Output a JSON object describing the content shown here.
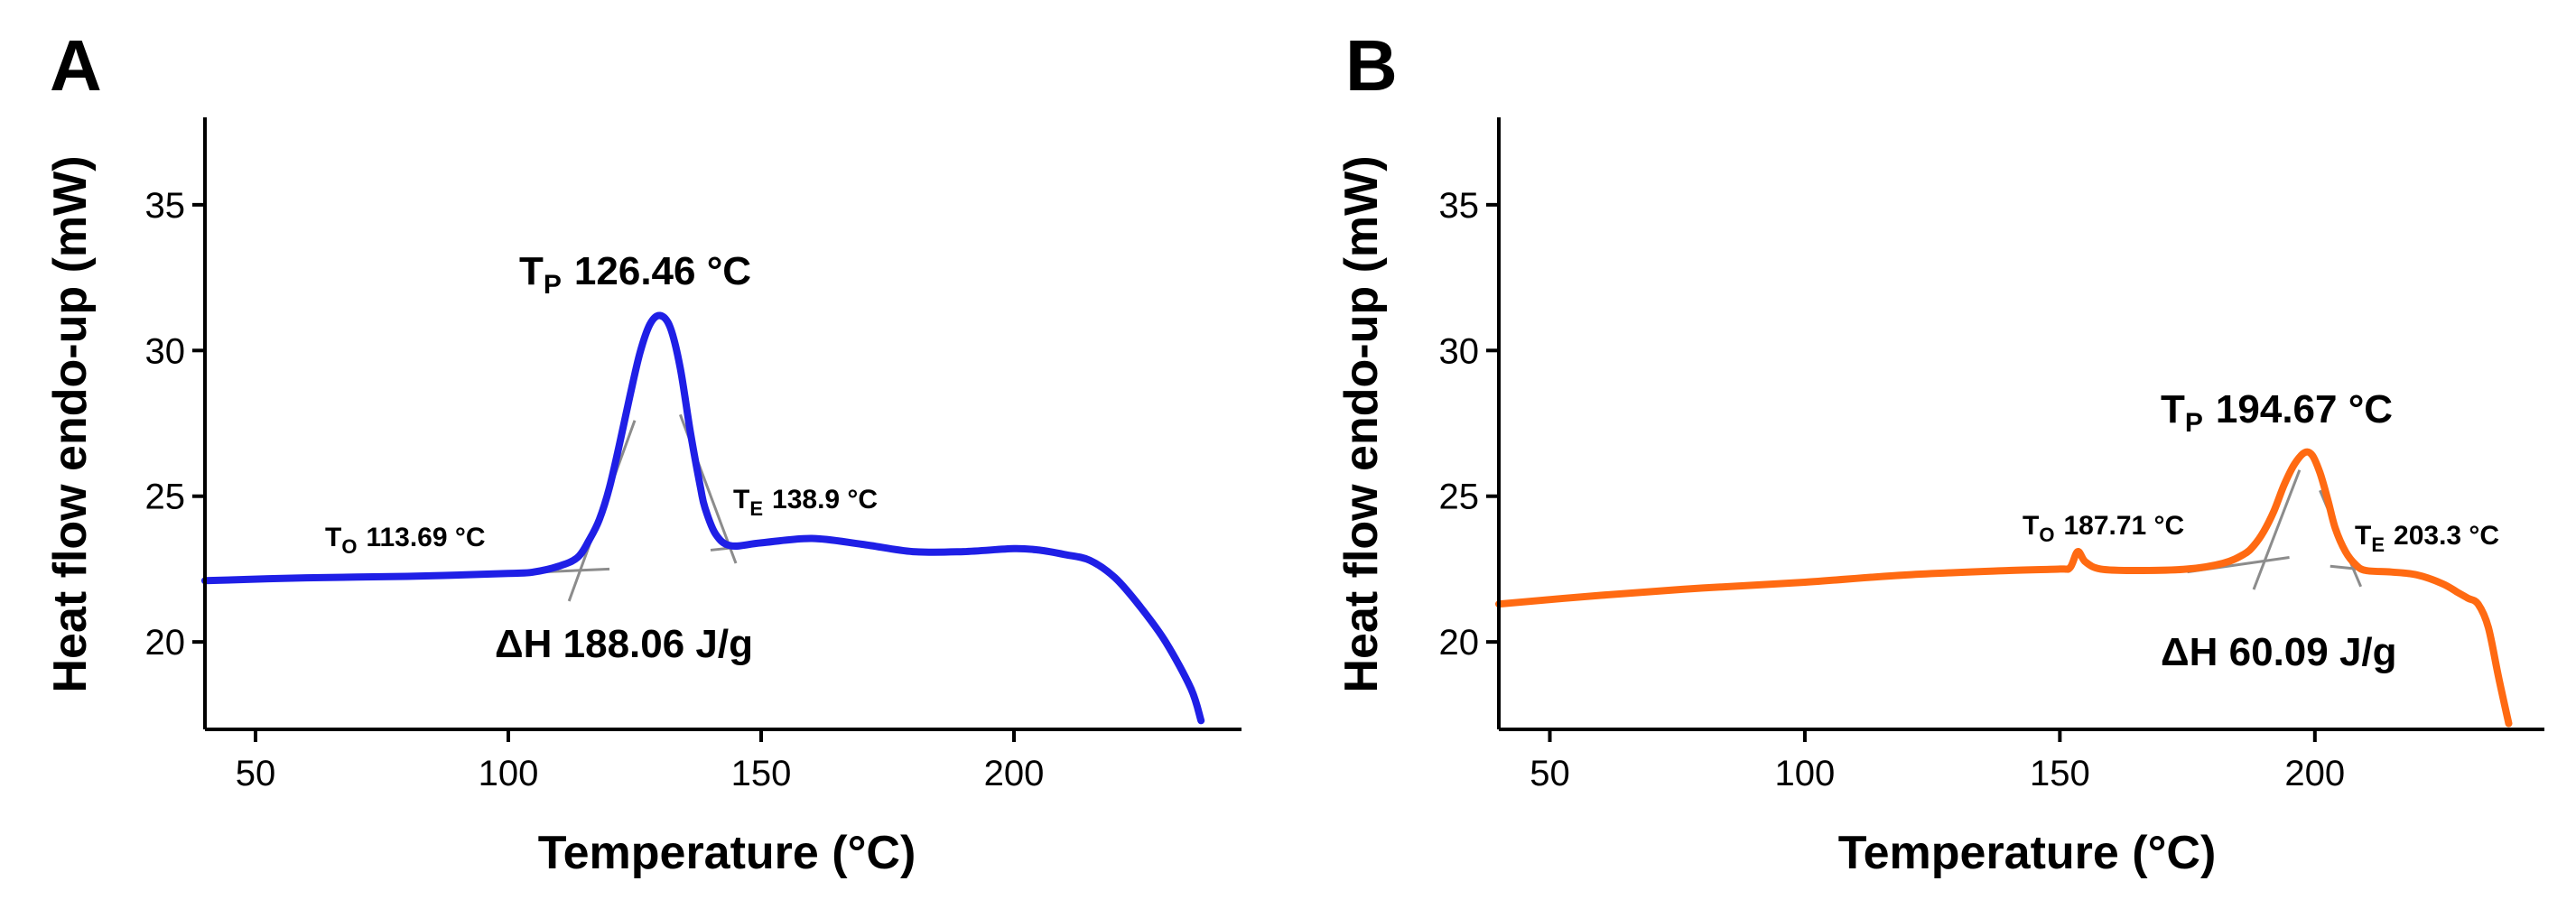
{
  "chart_data": [
    {
      "type": "line",
      "panel": "A",
      "xlabel": "Temperature (°C)",
      "ylabel": "Heat flow endo-up (mW)",
      "xlim": [
        40,
        245
      ],
      "ylim": [
        17,
        38
      ],
      "xticks": [
        50,
        100,
        150,
        200
      ],
      "yticks": [
        20,
        25,
        30,
        35
      ],
      "color": "#1f1fe6",
      "series": [
        {
          "name": "A",
          "x": [
            40,
            60,
            80,
            100,
            105,
            110,
            113.7,
            116,
            118,
            120,
            122,
            124,
            126,
            128,
            130,
            132,
            134,
            136,
            138,
            138.9,
            141,
            144,
            150,
            160,
            170,
            180,
            190,
            200,
            205,
            210,
            215,
            220,
            225,
            230,
            235,
            237
          ],
          "y": [
            22.1,
            22.2,
            22.25,
            22.35,
            22.4,
            22.6,
            22.9,
            23.5,
            24.2,
            25.3,
            26.8,
            28.4,
            29.9,
            30.9,
            31.2,
            30.8,
            29.4,
            27.2,
            25.3,
            24.6,
            23.7,
            23.3,
            23.4,
            23.55,
            23.35,
            23.1,
            23.1,
            23.2,
            23.15,
            23.0,
            22.8,
            22.2,
            21.2,
            20.0,
            18.4,
            17.3
          ]
        }
      ],
      "annotations": {
        "peak": {
          "label": "T",
          "sub": "P",
          "value": "126.46 °C"
        },
        "onset": {
          "label": "T",
          "sub": "O",
          "value": "113.69 °C"
        },
        "endset": {
          "label": "T",
          "sub": "E",
          "value": "138.9 °C"
        },
        "enthalpy": "ΔH 188.06 J/g"
      }
    },
    {
      "type": "line",
      "panel": "B",
      "xlabel": "Temperature (°C)",
      "ylabel": "Heat flow endo-up (mW)",
      "xlim": [
        40,
        245
      ],
      "ylim": [
        17,
        38
      ],
      "xticks": [
        50,
        100,
        150,
        200
      ],
      "yticks": [
        20,
        25,
        30,
        35
      ],
      "color": "#ff6a12",
      "series": [
        {
          "name": "B",
          "x": [
            40,
            60,
            80,
            100,
            120,
            140,
            150,
            152,
            153.5,
            155,
            158,
            165,
            175,
            182,
            186,
            188,
            190,
            192,
            194,
            196,
            198,
            199.5,
            201,
            202.5,
            204,
            206,
            208,
            210,
            215,
            220,
            225,
            228,
            230,
            232,
            234,
            236,
            238
          ],
          "y": [
            21.3,
            21.6,
            21.85,
            22.05,
            22.3,
            22.45,
            22.5,
            22.55,
            23.1,
            22.75,
            22.5,
            22.45,
            22.5,
            22.7,
            23.0,
            23.3,
            23.8,
            24.5,
            25.4,
            26.1,
            26.5,
            26.4,
            25.8,
            24.9,
            23.9,
            23.1,
            22.65,
            22.45,
            22.4,
            22.3,
            22.0,
            21.7,
            21.5,
            21.3,
            20.5,
            18.8,
            17.2
          ]
        }
      ],
      "annotations": {
        "peak": {
          "label": "T",
          "sub": "P",
          "value": "194.67 °C"
        },
        "onset": {
          "label": "T",
          "sub": "O",
          "value": "187.71 °C"
        },
        "endset": {
          "label": "T",
          "sub": "E",
          "value": "203.3 °C"
        },
        "enthalpy": "ΔH 60.09 J/g"
      }
    }
  ]
}
